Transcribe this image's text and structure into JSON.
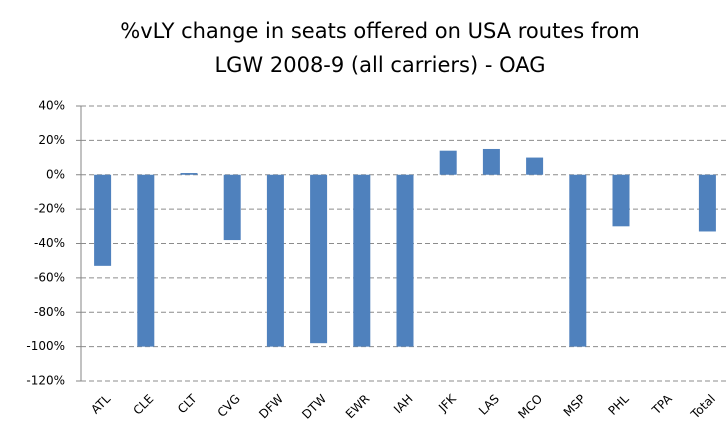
{
  "chart_data": {
    "type": "bar",
    "title": [
      "%vLY change in seats offered on USA routes from",
      "LGW 2008-9 (all carriers) - OAG"
    ],
    "categories": [
      "ATL",
      "CLE",
      "CLT",
      "CVG",
      "DFW",
      "DTW",
      "EWR",
      "IAH",
      "JFK",
      "LAS",
      "MCO",
      "MSP",
      "PHL",
      "TPA",
      "Total"
    ],
    "values": [
      -53,
      -100,
      1,
      -38,
      -100,
      -98,
      -100,
      -100,
      14,
      15,
      10,
      -100,
      -30,
      0,
      -33
    ],
    "color": "#4f81bd",
    "ylim": [
      -120,
      40
    ],
    "yticks": [
      {
        "value": 40,
        "label": "40%"
      },
      {
        "value": 20,
        "label": "20%"
      },
      {
        "value": 0,
        "label": "0%"
      },
      {
        "value": -20,
        "label": "-20%"
      },
      {
        "value": -40,
        "label": "-40%"
      },
      {
        "value": -60,
        "label": "-60%"
      },
      {
        "value": -80,
        "label": "-80%"
      },
      {
        "value": -100,
        "label": "-100%"
      },
      {
        "value": -120,
        "label": "-120%"
      }
    ],
    "grid": true
  }
}
